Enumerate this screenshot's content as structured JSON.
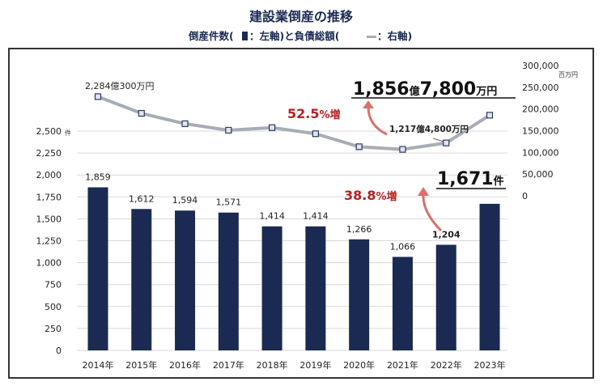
{
  "chart_data": {
    "type": "bar",
    "title": "建設業倒産の推移",
    "subtitle_parts": [
      "倒産件数(",
      "：左軸)と負債総額(",
      "：右軸)"
    ],
    "categories": [
      "2014年",
      "2015年",
      "2016年",
      "2017年",
      "2018年",
      "2019年",
      "2020年",
      "2021年",
      "2022年",
      "2023年"
    ],
    "series": [
      {
        "name": "倒産件数",
        "type": "bar",
        "axis": "left",
        "color": "#1a2a52",
        "values": [
          1859,
          1612,
          1594,
          1571,
          1414,
          1414,
          1266,
          1066,
          1204,
          1671
        ],
        "labels": [
          "1,859",
          "1,612",
          "1,594",
          "1,571",
          "1,414",
          "1,414",
          "1,266",
          "1,066",
          "1,204",
          ""
        ]
      },
      {
        "name": "負債総額",
        "type": "line",
        "axis": "right",
        "color": "#a8acb5",
        "values": [
          228403,
          190000,
          166000,
          151000,
          157000,
          143000,
          113000,
          107000,
          121748,
          185678
        ]
      }
    ],
    "left_axis": {
      "ylim": [
        0,
        2500
      ],
      "ticks": [
        "0",
        "250",
        "500",
        "750",
        "1,000",
        "1,250",
        "1,500",
        "1,750",
        "2,000",
        "2,250",
        "2,500"
      ],
      "unit": "件"
    },
    "right_axis": {
      "ylim": [
        0,
        300000
      ],
      "ticks": [
        "0",
        "50,000",
        "100,000",
        "150,000",
        "200,000",
        "250,000",
        "300,000"
      ],
      "unit": "百万円"
    },
    "grid": true,
    "annotations": {
      "debt_2014": "2,284億300万円",
      "debt_2022": "1,217億4,800万円",
      "debt_2023_num1": "1,856",
      "debt_2023_unit1": "億",
      "debt_2023_num2": "7,800",
      "debt_2023_unit2": "万円",
      "debt_increase_num": "52.5",
      "debt_increase_unit": "%増",
      "count_2023_num": "1,671",
      "count_2023_unit": "件",
      "count_increase_num": "38.8",
      "count_increase_unit": "%増"
    },
    "accent_color": "#b22222"
  }
}
